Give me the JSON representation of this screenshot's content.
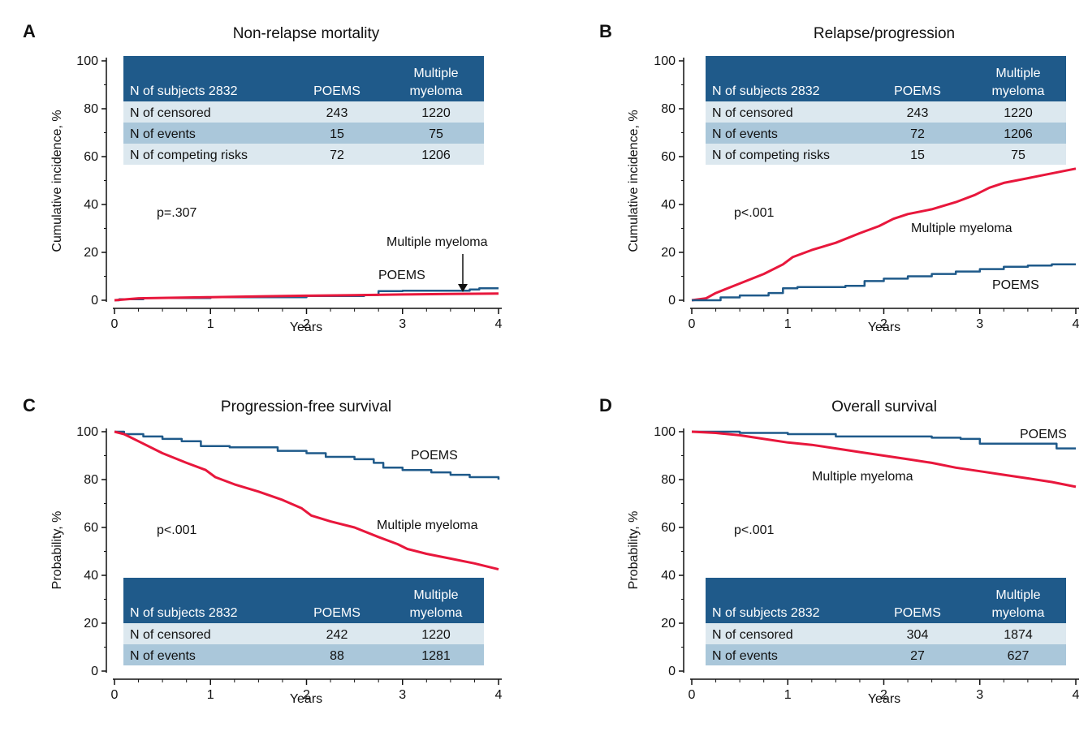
{
  "colors": {
    "poems": "#1f5a8a",
    "multiple_myeloma": "#e8173c",
    "table_header": "#1f5a8a",
    "row_light": "#dce8ef",
    "row_mid": "#aac7da"
  },
  "chart_data": [
    {
      "type": "line",
      "panel": "A",
      "title": "Non-relapse mortality",
      "xlabel": "Years",
      "ylabel": "Cumulative incidence, %",
      "xlim": [
        0,
        4
      ],
      "ylim": [
        0,
        100
      ],
      "x_ticks": [
        "0",
        "1",
        "2",
        "3",
        "4"
      ],
      "y_ticks": [
        "0",
        "20",
        "40",
        "60",
        "80",
        "100"
      ],
      "p_value": "p=.307",
      "series": [
        {
          "name": "POEMS",
          "key": "poems",
          "step": true,
          "points": [
            [
              0,
              0
            ],
            [
              0.05,
              0.4
            ],
            [
              0.3,
              0.9
            ],
            [
              1,
              1.3
            ],
            [
              2,
              1.8
            ],
            [
              2.6,
              2.2
            ],
            [
              2.75,
              3.8
            ],
            [
              3,
              4.0
            ],
            [
              3.7,
              4.5
            ],
            [
              3.8,
              5.0
            ],
            [
              4,
              5.0
            ]
          ]
        },
        {
          "name": "Multiple myeloma",
          "key": "multiple_myeloma",
          "step": false,
          "points": [
            [
              0,
              0
            ],
            [
              0.25,
              0.8
            ],
            [
              0.5,
              1.0
            ],
            [
              1,
              1.3
            ],
            [
              1.5,
              1.6
            ],
            [
              2,
              1.9
            ],
            [
              2.5,
              2.1
            ],
            [
              3,
              2.4
            ],
            [
              3.5,
              2.6
            ],
            [
              4,
              2.8
            ]
          ]
        }
      ],
      "annotations": [
        {
          "text": "POEMS",
          "series": "poems"
        },
        {
          "text": "Multiple myeloma",
          "series": "multiple_myeloma",
          "arrow": true
        }
      ],
      "table": {
        "header": [
          "N of subjects 2832",
          "POEMS",
          "Multiple",
          "myeloma"
        ],
        "rows": [
          [
            "N of censored",
            "243",
            "1220"
          ],
          [
            "N of events",
            "15",
            "75"
          ],
          [
            "N of competing risks",
            "72",
            "1206"
          ]
        ]
      }
    },
    {
      "type": "line",
      "panel": "B",
      "title": "Relapse/progression",
      "xlabel": "Years",
      "ylabel": "Cumulative incidence, %",
      "xlim": [
        0,
        4
      ],
      "ylim": [
        0,
        100
      ],
      "x_ticks": [
        "0",
        "1",
        "2",
        "3",
        "4"
      ],
      "y_ticks": [
        "0",
        "20",
        "40",
        "60",
        "80",
        "100"
      ],
      "p_value": "p<.001",
      "series": [
        {
          "name": "Multiple myeloma",
          "key": "multiple_myeloma",
          "step": false,
          "points": [
            [
              0,
              0
            ],
            [
              0.15,
              0.8
            ],
            [
              0.25,
              3
            ],
            [
              0.5,
              7
            ],
            [
              0.75,
              11
            ],
            [
              0.95,
              15
            ],
            [
              1.05,
              18
            ],
            [
              1.25,
              21
            ],
            [
              1.5,
              24
            ],
            [
              1.75,
              28
            ],
            [
              1.95,
              31
            ],
            [
              2.1,
              34
            ],
            [
              2.25,
              36
            ],
            [
              2.5,
              38
            ],
            [
              2.75,
              41
            ],
            [
              2.95,
              44
            ],
            [
              3.1,
              47
            ],
            [
              3.25,
              49
            ],
            [
              3.5,
              51
            ],
            [
              3.75,
              53
            ],
            [
              4,
              55
            ]
          ]
        },
        {
          "name": "POEMS",
          "key": "poems",
          "step": true,
          "points": [
            [
              0,
              0
            ],
            [
              0.3,
              1.2
            ],
            [
              0.5,
              2
            ],
            [
              0.8,
              3
            ],
            [
              0.95,
              5
            ],
            [
              1.1,
              5.5
            ],
            [
              1.6,
              6
            ],
            [
              1.8,
              8
            ],
            [
              2,
              9
            ],
            [
              2.25,
              10
            ],
            [
              2.5,
              11
            ],
            [
              2.75,
              12
            ],
            [
              3,
              13
            ],
            [
              3.25,
              14
            ],
            [
              3.5,
              14.5
            ],
            [
              3.75,
              15
            ],
            [
              4,
              15
            ]
          ]
        }
      ],
      "annotations": [
        {
          "text": "Multiple myeloma",
          "series": "multiple_myeloma"
        },
        {
          "text": "POEMS",
          "series": "poems"
        }
      ],
      "table": {
        "header": [
          "N of subjects 2832",
          "POEMS",
          "Multiple",
          "myeloma"
        ],
        "rows": [
          [
            "N of censored",
            "243",
            "1220"
          ],
          [
            "N of events",
            "72",
            "1206"
          ],
          [
            "N of competing risks",
            "15",
            "75"
          ]
        ]
      }
    },
    {
      "type": "line",
      "panel": "C",
      "title": "Progression-free survival",
      "xlabel": "Years",
      "ylabel": "Probability, %",
      "xlim": [
        0,
        4
      ],
      "ylim": [
        0,
        100
      ],
      "x_ticks": [
        "0",
        "1",
        "2",
        "3",
        "4"
      ],
      "y_ticks": [
        "0",
        "20",
        "40",
        "60",
        "80",
        "100"
      ],
      "p_value": "p<.001",
      "series": [
        {
          "name": "POEMS",
          "key": "poems",
          "step": true,
          "points": [
            [
              0,
              100
            ],
            [
              0.1,
              99
            ],
            [
              0.3,
              98
            ],
            [
              0.5,
              97
            ],
            [
              0.7,
              96
            ],
            [
              0.9,
              94
            ],
            [
              1.2,
              93.5
            ],
            [
              1.5,
              93.5
            ],
            [
              1.7,
              92
            ],
            [
              2,
              91
            ],
            [
              2.2,
              89.5
            ],
            [
              2.5,
              88.5
            ],
            [
              2.7,
              87
            ],
            [
              2.8,
              85
            ],
            [
              3,
              84
            ],
            [
              3.3,
              83
            ],
            [
              3.5,
              82
            ],
            [
              3.7,
              81
            ],
            [
              4,
              80
            ]
          ]
        },
        {
          "name": "Multiple myeloma",
          "key": "multiple_myeloma",
          "step": false,
          "points": [
            [
              0,
              100
            ],
            [
              0.1,
              99
            ],
            [
              0.25,
              96
            ],
            [
              0.5,
              91
            ],
            [
              0.75,
              87
            ],
            [
              0.95,
              84
            ],
            [
              1.05,
              81
            ],
            [
              1.25,
              78
            ],
            [
              1.5,
              75
            ],
            [
              1.75,
              71.5
            ],
            [
              1.95,
              68
            ],
            [
              2.05,
              65
            ],
            [
              2.25,
              62.5
            ],
            [
              2.5,
              60
            ],
            [
              2.75,
              56
            ],
            [
              2.95,
              53
            ],
            [
              3.05,
              51
            ],
            [
              3.25,
              49
            ],
            [
              3.5,
              47
            ],
            [
              3.75,
              45
            ],
            [
              4,
              42.5
            ]
          ]
        }
      ],
      "annotations": [
        {
          "text": "POEMS",
          "series": "poems"
        },
        {
          "text": "Multiple myeloma",
          "series": "multiple_myeloma"
        }
      ],
      "table": {
        "header": [
          "N of subjects 2832",
          "POEMS",
          "Multiple",
          "myeloma"
        ],
        "rows": [
          [
            "N of censored",
            "242",
            "1220"
          ],
          [
            "N of events",
            "88",
            "1281"
          ]
        ]
      }
    },
    {
      "type": "line",
      "panel": "D",
      "title": "Overall survival",
      "xlabel": "Years",
      "ylabel": "Probability, %",
      "xlim": [
        0,
        4
      ],
      "ylim": [
        0,
        100
      ],
      "x_ticks": [
        "0",
        "1",
        "2",
        "3",
        "4"
      ],
      "y_ticks": [
        "0",
        "20",
        "40",
        "60",
        "80",
        "100"
      ],
      "p_value": "p<.001",
      "series": [
        {
          "name": "POEMS",
          "key": "poems",
          "step": true,
          "points": [
            [
              0,
              100
            ],
            [
              0.5,
              99.5
            ],
            [
              1,
              99
            ],
            [
              1.5,
              98
            ],
            [
              2,
              98
            ],
            [
              2.5,
              97.5
            ],
            [
              2.8,
              97
            ],
            [
              3,
              95
            ],
            [
              3.3,
              95
            ],
            [
              3.6,
              95
            ],
            [
              3.8,
              93
            ],
            [
              4,
              93
            ]
          ]
        },
        {
          "name": "Multiple myeloma",
          "key": "multiple_myeloma",
          "step": false,
          "points": [
            [
              0,
              100
            ],
            [
              0.25,
              99.5
            ],
            [
              0.5,
              98.5
            ],
            [
              0.75,
              97
            ],
            [
              1,
              95.5
            ],
            [
              1.25,
              94.5
            ],
            [
              1.5,
              93
            ],
            [
              1.75,
              91.5
            ],
            [
              2,
              90
            ],
            [
              2.25,
              88.5
            ],
            [
              2.5,
              87
            ],
            [
              2.75,
              85
            ],
            [
              3,
              83.5
            ],
            [
              3.25,
              82
            ],
            [
              3.5,
              80.5
            ],
            [
              3.75,
              79
            ],
            [
              4,
              77
            ]
          ]
        }
      ],
      "annotations": [
        {
          "text": "POEMS",
          "series": "poems"
        },
        {
          "text": "Multiple myeloma",
          "series": "multiple_myeloma"
        }
      ],
      "table": {
        "header": [
          "N of subjects 2832",
          "POEMS",
          "Multiple",
          "myeloma"
        ],
        "rows": [
          [
            "N of censored",
            "304",
            "1874"
          ],
          [
            "N of events",
            "27",
            "627"
          ]
        ]
      }
    }
  ]
}
